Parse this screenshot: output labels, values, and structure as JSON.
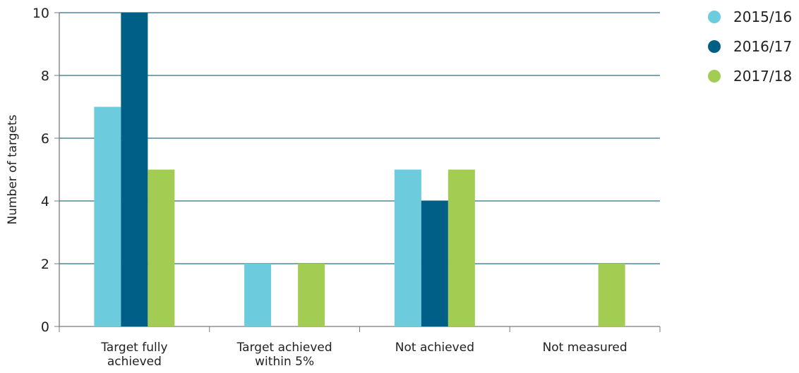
{
  "chart_data": {
    "type": "bar",
    "categories": [
      [
        "Target fully",
        "achieved"
      ],
      [
        "Target achieved",
        "within 5%"
      ],
      [
        "Not achieved"
      ],
      [
        "Not measured"
      ]
    ],
    "series": [
      {
        "name": "2015/16",
        "values": [
          7,
          2,
          5,
          0
        ],
        "color": "#6ccbdc"
      },
      {
        "name": "2016/17",
        "values": [
          10,
          0,
          4,
          0
        ],
        "color": "#005f87"
      },
      {
        "name": "2017/18",
        "values": [
          5,
          2,
          5,
          2
        ],
        "color": "#a3cc52"
      }
    ],
    "ylabel": "Number of targets",
    "xlabel": "",
    "ylim": [
      0,
      10
    ],
    "yticks": [
      0,
      2,
      4,
      6,
      8,
      10
    ],
    "grid": true,
    "legend_position": "top-right",
    "grid_color": "#2f6f86",
    "axis_color": "#7a7a7a"
  }
}
